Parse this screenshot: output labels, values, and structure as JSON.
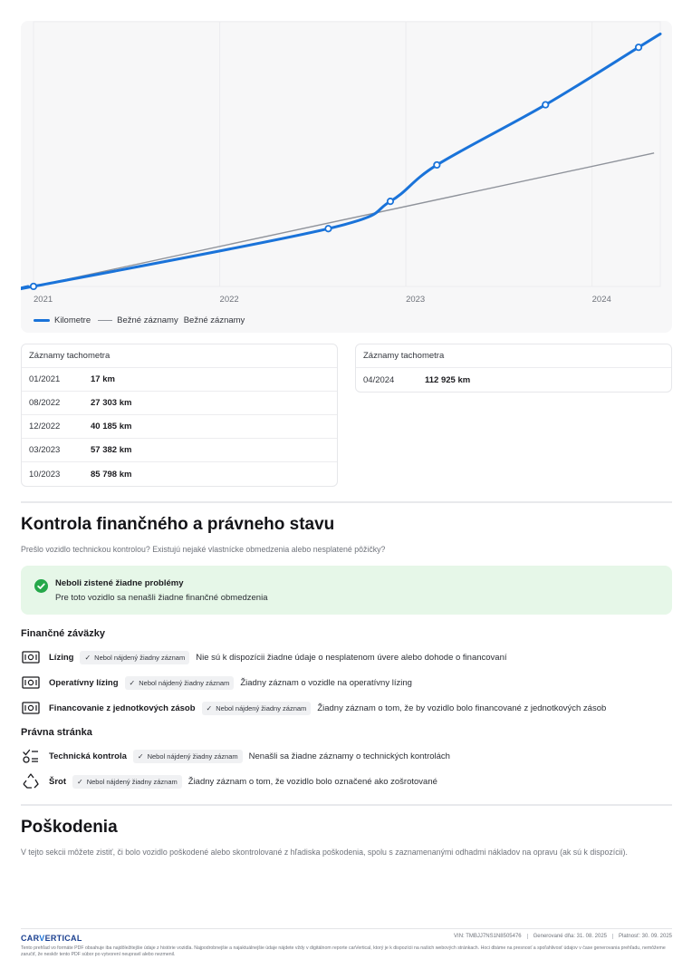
{
  "chart_data": {
    "type": "line",
    "x_ticks": [
      "2021",
      "2022",
      "2023",
      "2024"
    ],
    "series": [
      {
        "name": "Kilometre",
        "color": "#1a73d9",
        "points": [
          {
            "date": "2021-01",
            "km": 17
          },
          {
            "date": "2022-08",
            "km": 27303
          },
          {
            "date": "2022-12",
            "km": 40185
          },
          {
            "date": "2023-03",
            "km": 57382
          },
          {
            "date": "2023-10",
            "km": 85798
          },
          {
            "date": "2024-04",
            "km": 112925
          }
        ]
      },
      {
        "name": "Bežné záznamy",
        "color": "#8f939b",
        "points": [
          {
            "date": "2021-01",
            "km": 0
          },
          {
            "date": "2024-05",
            "km": 63000
          }
        ]
      }
    ],
    "legend_position": "bottom-left",
    "grid": true
  },
  "legend": {
    "series1": "Kilometre",
    "series2": "Bežné záznamy",
    "series2_dup": "Bežné záznamy"
  },
  "odometer": {
    "left": {
      "header": "Záznamy tachometra",
      "rows": [
        {
          "date": "01/2021",
          "km": "17 km"
        },
        {
          "date": "08/2022",
          "km": "27 303 km"
        },
        {
          "date": "12/2022",
          "km": "40 185 km"
        },
        {
          "date": "03/2023",
          "km": "57 382 km"
        },
        {
          "date": "10/2023",
          "km": "85 798 km"
        }
      ]
    },
    "right": {
      "header": "Záznamy tachometra",
      "rows": [
        {
          "date": "04/2024",
          "km": "112 925 km"
        }
      ]
    }
  },
  "finance": {
    "title": "Kontrola finančného a právneho stavu",
    "subtitle": "Prešlo vozidlo technickou kontrolou? Existujú nejaké vlastnícke obmedzenia alebo nesplatené pôžičky?",
    "ok_title": "Neboli zistené žiadne problémy",
    "ok_text": "Pre toto vozidlo sa nenašli žiadne finančné obmedzenia",
    "obligations_heading": "Finančné záväzky",
    "obligations": [
      {
        "label": "Lízing",
        "badge": "Nebol nájdený žiadny záznam",
        "desc": "Nie sú k dispozícii žiadne údaje o nesplatenom úvere alebo dohode o financovaní",
        "icon": "banknote-icon"
      },
      {
        "label": "Operatívny lízing",
        "badge": "Nebol nájdený žiadny záznam",
        "desc": "Žiadny záznam o vozidle na operatívny lízing",
        "icon": "banknote-icon"
      },
      {
        "label": "Financovanie z jednotkových zásob",
        "badge": "Nebol nájdený žiadny záznam",
        "desc": "Žiadny záznam o tom, že by vozidlo bolo financované z jednotkových zásob",
        "icon": "banknote-icon"
      }
    ],
    "legal_heading": "Právna stránka",
    "legal": [
      {
        "label": "Technická kontrola",
        "badge": "Nebol nájdený žiadny záznam",
        "desc": "Nenašli sa žiadne záznamy o technických kontrolách",
        "icon": "checklist-icon"
      },
      {
        "label": "Šrot",
        "badge": "Nebol nájdený žiadny záznam",
        "desc": "Žiadny záznam o tom, že vozidlo bolo označené ako zošrotované",
        "icon": "recycle-icon"
      }
    ]
  },
  "damage": {
    "title": "Poškodenia",
    "subtitle": "V tejto sekcii môžete zistiť, či bolo vozidlo poškodené alebo skontrolované z hľadiska poškodenia, spolu s zaznamenanými odhadmi nákladov na opravu (ak sú k dispozícii)."
  },
  "footer": {
    "logo_part1": "CAR",
    "logo_part2": "V",
    "logo_part3": "ERTICAL",
    "vin": "VIN: TMBJJ7NS1N8505476",
    "generated": "Generované dňa: 31. 08. 2025",
    "valid": "Platnosť: 30. 09. 2025",
    "disclaimer": "Tento prehľad vo formáte PDF obsahuje iba najdôležitejšie údaje z histórie vozidla. Najpodrobnejšie a najaktuálnejšie údaje nájdete vždy v digitálnom reporte carVertical, ktorý je k dispozícii na našich webových stránkach. Hoci dbáme na presnosť a spoľahlivosť údajov v čase generovania prehľadu, nemôžeme zaručiť, že neskôr tento PDF súbor po vytvorení neupravil alebo nezmenil."
  }
}
